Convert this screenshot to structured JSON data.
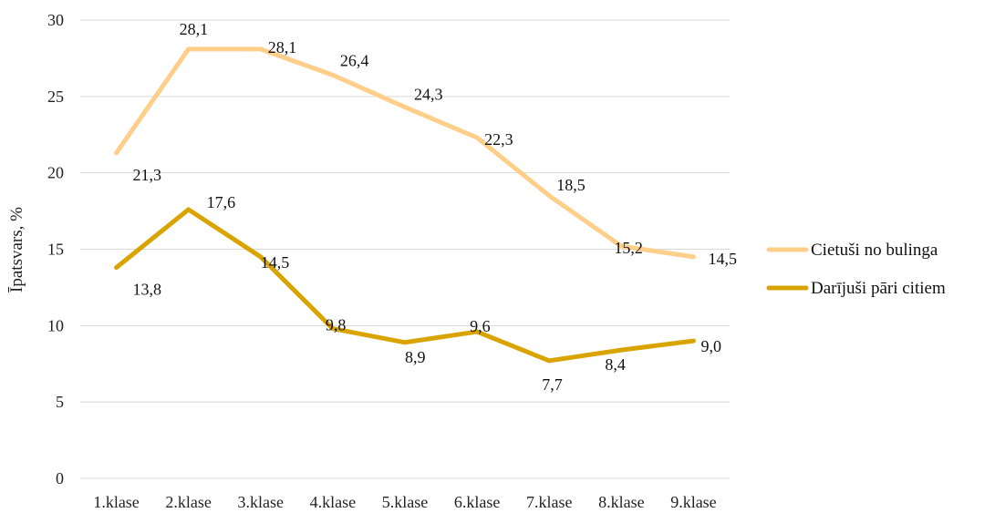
{
  "chart_data": {
    "type": "line",
    "title": "",
    "xlabel": "",
    "ylabel": "Īpatsvars, %",
    "ylim": [
      0,
      30
    ],
    "yticks": [
      "0",
      "5",
      "10",
      "15",
      "20",
      "25",
      "30"
    ],
    "grid": true,
    "legend": "right",
    "categories": [
      "1.klase",
      "2.klase",
      "3.klase",
      "4.klase",
      "5.klase",
      "6.klase",
      "7.klase",
      "8.klase",
      "9.klase"
    ],
    "series": [
      {
        "name": "Cietuši no bulinga",
        "color": "#FFCF8A",
        "values": [
          21.3,
          28.1,
          28.1,
          26.4,
          24.3,
          22.3,
          18.5,
          15.2,
          14.5
        ],
        "labels": [
          "21,3",
          "28,1",
          "28,1",
          "26,4",
          "24,3",
          "22,3",
          "18,5",
          "15,2",
          "14,5"
        ]
      },
      {
        "name": "Darījuši pāri citiem",
        "color": "#D9A400",
        "values": [
          13.8,
          17.6,
          14.5,
          9.8,
          8.9,
          9.6,
          7.7,
          8.4,
          9.0
        ],
        "labels": [
          "13,8",
          "17,6",
          "14,5",
          "9,8",
          "8,9",
          "9,6",
          "7,7",
          "8,4",
          "9,0"
        ]
      }
    ]
  }
}
